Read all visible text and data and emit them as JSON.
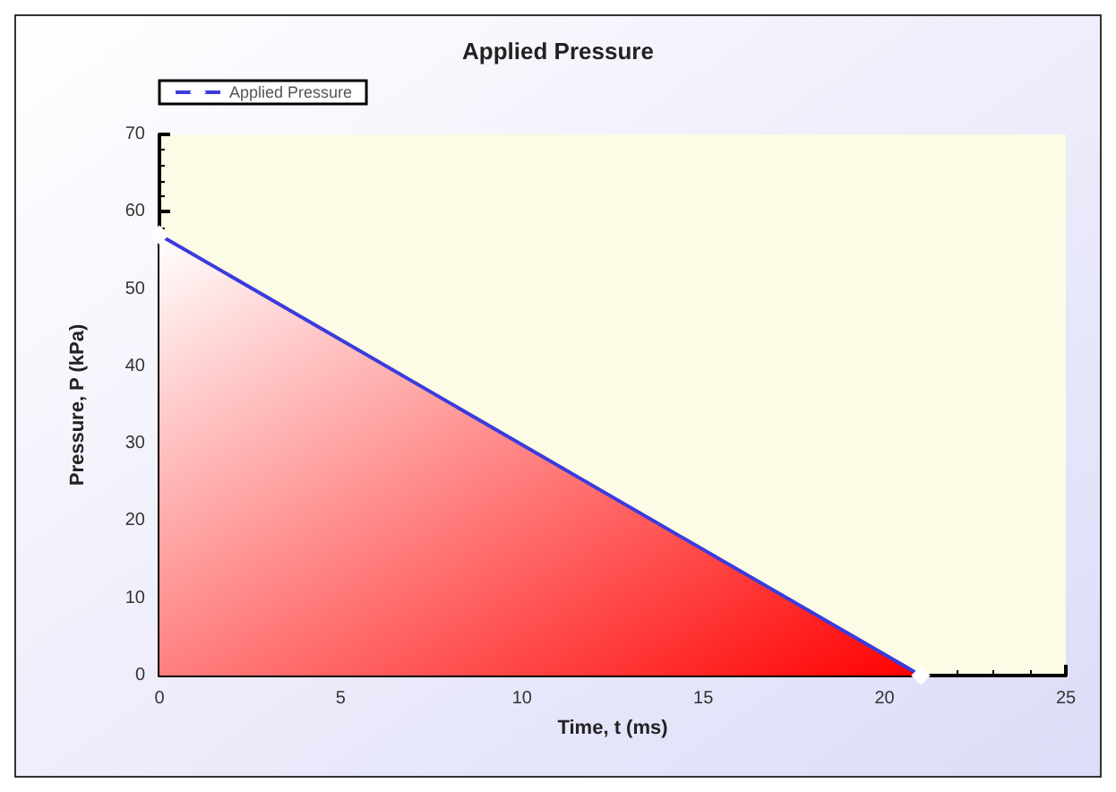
{
  "chart_data": {
    "type": "area",
    "title": "Applied Pressure",
    "xlabel": "Time, t (ms)",
    "ylabel": "Pressure, P (kPa)",
    "x": [
      0,
      21
    ],
    "series": [
      {
        "name": "Applied Pressure",
        "color": "#ff0000",
        "values": [
          57,
          0
        ]
      }
    ],
    "xlim": [
      0,
      25
    ],
    "xticks": [
      0,
      5,
      10,
      15,
      20,
      25
    ],
    "ylim": [
      0,
      70
    ],
    "yticks": [
      0,
      10,
      20,
      30,
      40,
      50,
      60,
      70
    ],
    "grid": false,
    "legend": "top left",
    "marker": "diamond",
    "line_style": "solid"
  }
}
